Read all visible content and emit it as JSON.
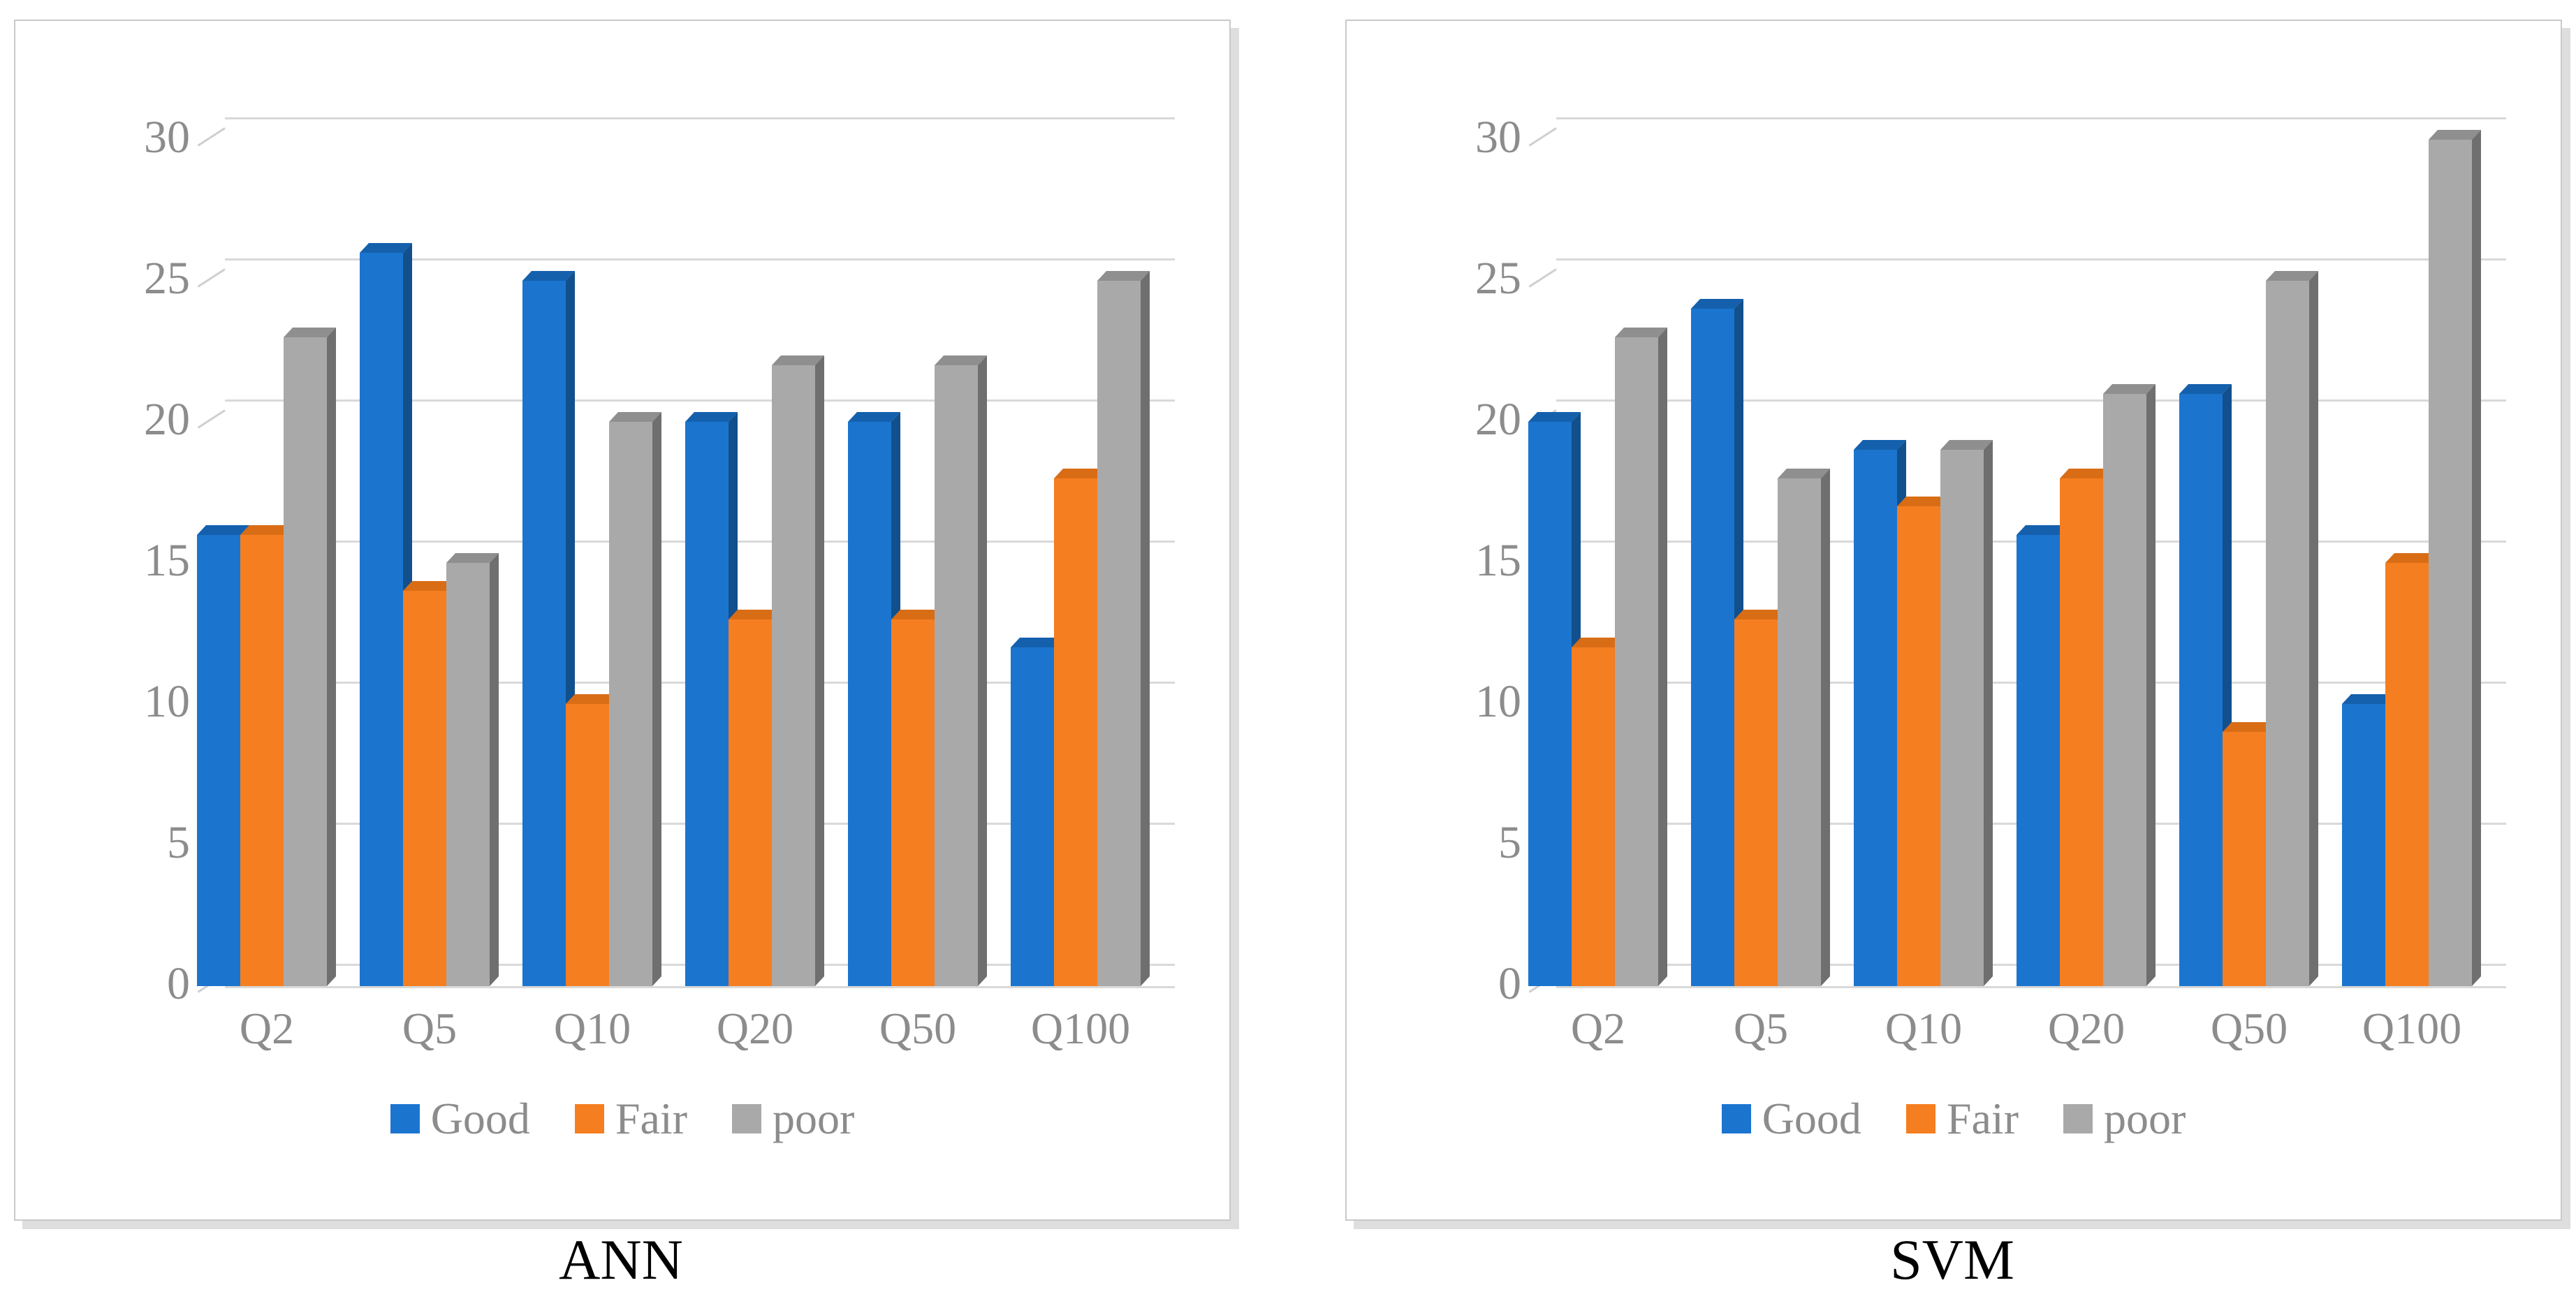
{
  "page": {
    "background": "#ffffff"
  },
  "styles": {
    "gridline_color": "#d9d9d9",
    "tick_text_color": "#8c8c8c",
    "title_text_color": "#000000",
    "panel_border_color": "#c9c9c9",
    "panel_shadow_color": "#dedede"
  },
  "chart_data": [
    {
      "type": "bar",
      "title": "ANN",
      "categories": [
        "Q2",
        "Q5",
        "Q10",
        "Q20",
        "Q50",
        "Q100"
      ],
      "series": [
        {
          "name": "Good",
          "color": "#1b75cf",
          "side_color": "#11508c",
          "top_color": "#1560ad",
          "values": [
            16,
            26,
            25,
            20,
            20,
            12
          ]
        },
        {
          "name": "Fair",
          "color": "#f57e20",
          "side_color": "#bd5c10",
          "top_color": "#d96d16",
          "values": [
            16,
            14,
            10,
            13,
            13,
            18
          ]
        },
        {
          "name": "poor",
          "color": "#a9a9a9",
          "side_color": "#6f6f6f",
          "top_color": "#8f8f8f",
          "values": [
            23,
            15,
            20,
            22,
            22,
            25
          ]
        }
      ],
      "ylim": [
        0,
        30
      ],
      "yticks": [
        0,
        5,
        10,
        15,
        20,
        25,
        30
      ],
      "xlabel": "",
      "ylabel": "",
      "grid": true,
      "legend_position": "bottom"
    },
    {
      "type": "bar",
      "title": "SVM",
      "categories": [
        "Q2",
        "Q5",
        "Q10",
        "Q20",
        "Q50",
        "Q100"
      ],
      "series": [
        {
          "name": "Good",
          "color": "#1b75cf",
          "side_color": "#11508c",
          "top_color": "#1560ad",
          "values": [
            20,
            24,
            19,
            16,
            21,
            10
          ]
        },
        {
          "name": "Fair",
          "color": "#f57e20",
          "side_color": "#bd5c10",
          "top_color": "#d96d16",
          "values": [
            12,
            13,
            17,
            18,
            9,
            15
          ]
        },
        {
          "name": "poor",
          "color": "#a9a9a9",
          "side_color": "#6f6f6f",
          "top_color": "#8f8f8f",
          "values": [
            23,
            18,
            19,
            21,
            25,
            30
          ]
        }
      ],
      "ylim": [
        0,
        30
      ],
      "yticks": [
        0,
        5,
        10,
        15,
        20,
        25,
        30
      ],
      "xlabel": "",
      "ylabel": "",
      "grid": true,
      "legend_position": "bottom"
    }
  ]
}
